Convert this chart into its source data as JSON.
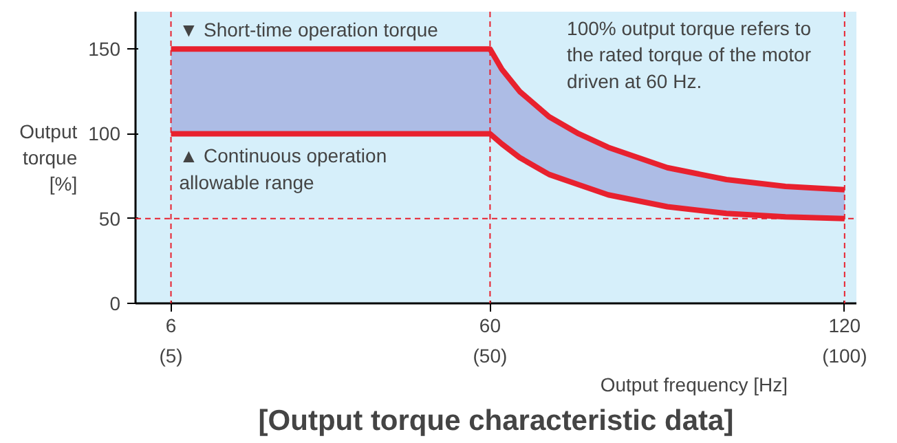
{
  "chart_data": {
    "type": "line",
    "title": "[Output torque characteristic data]",
    "xlabel": "Output frequency [Hz]",
    "ylabel": "Output\ntorque\n[%]",
    "xlim": [
      0,
      122
    ],
    "ylim": [
      0,
      172
    ],
    "xticks": [
      6,
      60,
      120
    ],
    "x2lim": [
      0,
      101.667
    ],
    "x2ticks": [
      {
        "value": 5,
        "label": "(5)"
      },
      {
        "value": 50,
        "label": "(50)"
      },
      {
        "value": 100,
        "label": "(100)"
      }
    ],
    "yticks": [
      0,
      50,
      100,
      150
    ],
    "grid": false,
    "line_style": "solid",
    "marker": "none",
    "series": [
      {
        "color": "#e8212e",
        "x": [
          6,
          60,
          62,
          65,
          70,
          75,
          80,
          90,
          100,
          110,
          120
        ],
        "values": [
          150,
          150,
          138,
          125,
          110,
          100,
          92,
          80,
          73,
          69,
          67
        ],
        "lower": [
          100,
          100,
          94,
          86,
          76,
          70,
          64,
          57,
          53,
          51,
          50
        ],
        "upper": [
          150,
          150,
          138,
          125,
          110,
          100,
          92,
          80,
          73,
          69,
          67
        ]
      },
      {
        "color": "#e8212e",
        "x": [
          6,
          60,
          62,
          65,
          70,
          75,
          80,
          90,
          100,
          110,
          120
        ],
        "values": [
          100,
          100,
          94,
          86,
          76,
          70,
          64,
          57,
          53,
          51,
          50
        ]
      }
    ],
    "ref_lines": [
      {
        "axis": "x",
        "value": 6,
        "color": "#e8212e",
        "line_style": "dashed"
      },
      {
        "axis": "x",
        "value": 60,
        "color": "#e8212e",
        "line_style": "dashed"
      },
      {
        "axis": "x",
        "value": 120,
        "color": "#e8212e",
        "line_style": "dashed"
      },
      {
        "axis": "y",
        "value": 50,
        "color": "#e8212e",
        "line_style": "dashed"
      }
    ],
    "annotations": [
      {
        "text": "▼ Short-time operation torque",
        "x": 6,
        "y": 150
      },
      {
        "text": "▲ Continuous operation\nallowable range",
        "x": 6,
        "y": 100
      },
      "100% output torque refers to\nthe rated torque of the motor\ndriven at 60 Hz."
    ]
  }
}
